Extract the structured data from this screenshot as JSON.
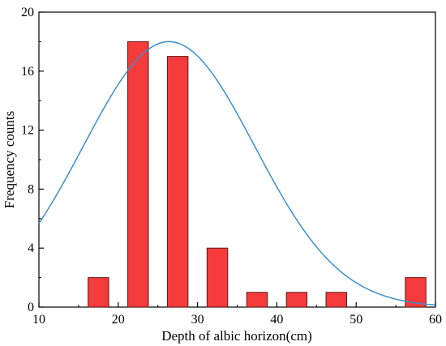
{
  "chart_data": {
    "type": "bar",
    "title": "",
    "xlabel": "Depth of albic horizon(cm)",
    "ylabel": "Frequency counts",
    "xlim": [
      10,
      60
    ],
    "ylim": [
      0,
      20
    ],
    "x_ticks": [
      10,
      20,
      30,
      40,
      50,
      60
    ],
    "y_ticks": [
      0,
      4,
      8,
      12,
      16,
      20
    ],
    "bin_width": 5,
    "bins": [
      {
        "center": 17.5,
        "count": 2
      },
      {
        "center": 22.5,
        "count": 18
      },
      {
        "center": 27.5,
        "count": 17
      },
      {
        "center": 32.5,
        "count": 4
      },
      {
        "center": 37.5,
        "count": 1
      },
      {
        "center": 42.5,
        "count": 1
      },
      {
        "center": 47.5,
        "count": 1
      },
      {
        "center": 57.5,
        "count": 2
      }
    ],
    "fit_curve": {
      "type": "normal",
      "mean": 26.4,
      "std": 10.8,
      "peak": 18,
      "color": "#3a8fd0"
    },
    "bar_color": "#f53b3b",
    "bar_border": "#5a1a1a",
    "grid": false,
    "legend": "none"
  }
}
